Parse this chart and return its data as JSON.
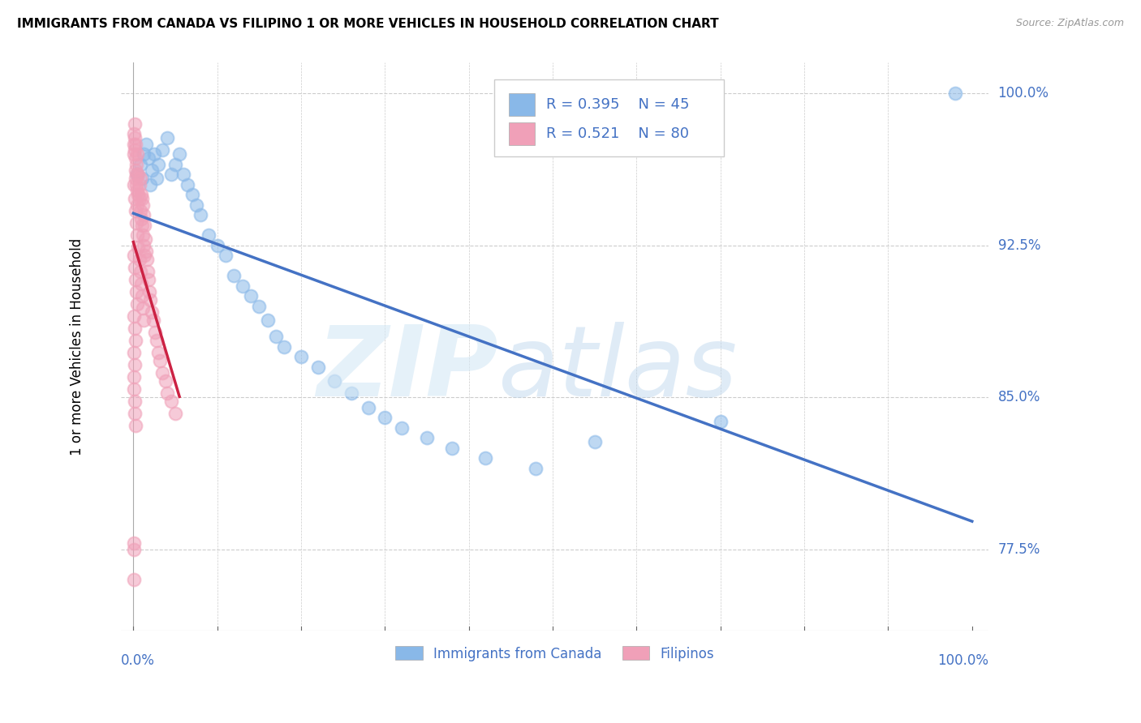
{
  "title": "IMMIGRANTS FROM CANADA VS FILIPINO 1 OR MORE VEHICLES IN HOUSEHOLD CORRELATION CHART",
  "source": "Source: ZipAtlas.com",
  "ylabel": "1 or more Vehicles in Household",
  "legend_r_canada": "R = 0.395",
  "legend_n_canada": "N = 45",
  "legend_r_filipino": "R = 0.521",
  "legend_n_filipino": "N = 80",
  "legend_label_canada": "Immigrants from Canada",
  "legend_label_filipino": "Filipinos",
  "ytick_labels": [
    "77.5%",
    "85.0%",
    "92.5%",
    "100.0%"
  ],
  "ytick_values": [
    0.775,
    0.85,
    0.925,
    1.0
  ],
  "color_canada": "#89b8e8",
  "color_filipino": "#f0a0b8",
  "line_color_canada": "#4472c4",
  "line_color_filipino": "#cc2244",
  "bg_color": "#ffffff",
  "grid_color": "#cccccc",
  "text_color_blue": "#4472c4",
  "title_fontsize": 11,
  "label_fontsize": 12,
  "scatter_size": 130,
  "scatter_alpha": 0.55,
  "canada_x": [
    0.005,
    0.008,
    0.01,
    0.012,
    0.015,
    0.018,
    0.02,
    0.022,
    0.025,
    0.028,
    0.03,
    0.035,
    0.04,
    0.045,
    0.05,
    0.055,
    0.06,
    0.065,
    0.07,
    0.075,
    0.08,
    0.09,
    0.1,
    0.11,
    0.12,
    0.13,
    0.14,
    0.15,
    0.16,
    0.17,
    0.18,
    0.2,
    0.22,
    0.24,
    0.26,
    0.28,
    0.3,
    0.32,
    0.35,
    0.38,
    0.42,
    0.48,
    0.55,
    0.7,
    0.98
  ],
  "canada_y": [
    0.96,
    0.965,
    0.958,
    0.97,
    0.975,
    0.968,
    0.955,
    0.962,
    0.97,
    0.958,
    0.965,
    0.972,
    0.978,
    0.96,
    0.965,
    0.97,
    0.96,
    0.955,
    0.95,
    0.945,
    0.94,
    0.93,
    0.925,
    0.92,
    0.91,
    0.905,
    0.9,
    0.895,
    0.888,
    0.88,
    0.875,
    0.87,
    0.865,
    0.858,
    0.852,
    0.845,
    0.84,
    0.835,
    0.83,
    0.825,
    0.82,
    0.815,
    0.828,
    0.838,
    1.0
  ],
  "filipino_x": [
    0.001,
    0.001,
    0.001,
    0.002,
    0.002,
    0.002,
    0.003,
    0.003,
    0.003,
    0.003,
    0.004,
    0.004,
    0.004,
    0.005,
    0.005,
    0.005,
    0.006,
    0.006,
    0.007,
    0.007,
    0.008,
    0.008,
    0.009,
    0.009,
    0.01,
    0.01,
    0.011,
    0.011,
    0.012,
    0.012,
    0.013,
    0.013,
    0.014,
    0.015,
    0.016,
    0.017,
    0.018,
    0.019,
    0.02,
    0.022,
    0.024,
    0.026,
    0.028,
    0.03,
    0.032,
    0.035,
    0.038,
    0.04,
    0.045,
    0.05,
    0.001,
    0.002,
    0.003,
    0.004,
    0.005,
    0.006,
    0.007,
    0.008,
    0.009,
    0.01,
    0.011,
    0.012,
    0.001,
    0.002,
    0.003,
    0.004,
    0.005,
    0.001,
    0.002,
    0.003,
    0.001,
    0.002,
    0.001,
    0.001,
    0.002,
    0.002,
    0.003,
    0.001,
    0.001,
    0.001
  ],
  "filipino_y": [
    0.98,
    0.975,
    0.97,
    0.985,
    0.978,
    0.972,
    0.968,
    0.962,
    0.975,
    0.958,
    0.965,
    0.955,
    0.96,
    0.97,
    0.952,
    0.945,
    0.96,
    0.95,
    0.955,
    0.948,
    0.958,
    0.942,
    0.95,
    0.938,
    0.948,
    0.935,
    0.945,
    0.93,
    0.94,
    0.925,
    0.935,
    0.92,
    0.928,
    0.922,
    0.918,
    0.912,
    0.908,
    0.902,
    0.898,
    0.892,
    0.888,
    0.882,
    0.878,
    0.872,
    0.868,
    0.862,
    0.858,
    0.852,
    0.848,
    0.842,
    0.955,
    0.948,
    0.942,
    0.936,
    0.93,
    0.924,
    0.918,
    0.912,
    0.906,
    0.9,
    0.894,
    0.888,
    0.92,
    0.914,
    0.908,
    0.902,
    0.896,
    0.89,
    0.884,
    0.878,
    0.872,
    0.866,
    0.86,
    0.854,
    0.848,
    0.842,
    0.836,
    0.775,
    0.778,
    0.76
  ]
}
